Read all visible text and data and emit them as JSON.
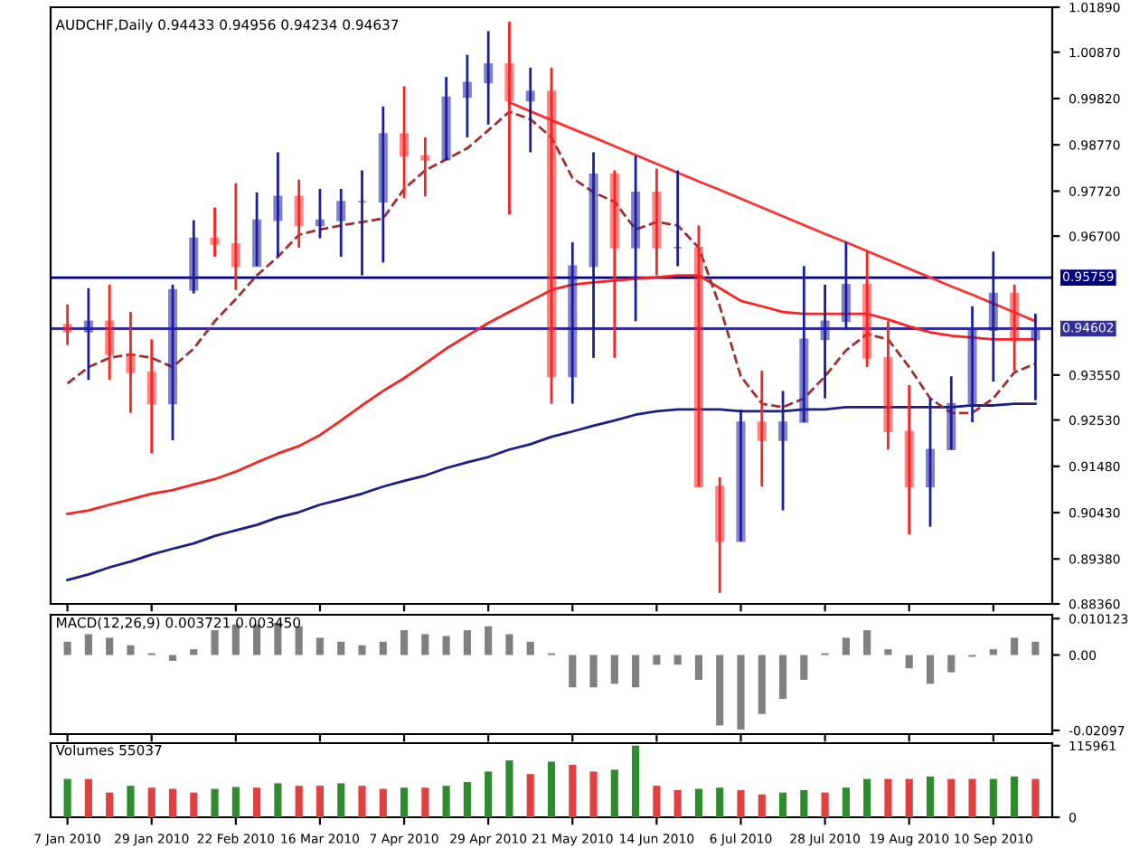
{
  "chart_data": [
    {
      "type": "candlestick",
      "title": "AUDCHF,Daily 0.94433 0.94956 0.94234 0.94637",
      "tick_labels": "y",
      "categories": [
        null,
        null,
        null,
        null,
        null,
        null,
        null,
        null,
        null,
        null,
        null,
        null,
        null,
        null,
        null,
        null,
        null,
        null,
        null,
        null,
        null,
        null,
        null,
        null,
        null,
        null,
        null,
        null,
        null,
        null,
        null,
        null,
        null,
        null,
        null,
        null,
        null,
        null,
        null,
        null,
        null,
        null,
        null,
        null,
        null,
        null,
        null
      ],
      "ohlc": [
        [
          0.9469,
          0.9515,
          0.9423,
          0.9453
        ],
        [
          0.9453,
          0.9552,
          0.9344,
          0.9477
        ],
        [
          0.9477,
          0.956,
          0.9344,
          0.9402
        ],
        [
          0.9402,
          0.9498,
          0.9269,
          0.9361
        ],
        [
          0.9361,
          0.9436,
          0.9177,
          0.929
        ],
        [
          0.929,
          0.956,
          0.9207,
          0.9548
        ],
        [
          0.9548,
          0.9706,
          0.954,
          0.9665
        ],
        [
          0.9665,
          0.9735,
          0.9623,
          0.9652
        ],
        [
          0.9652,
          0.979,
          0.9548,
          0.9602
        ],
        [
          0.9602,
          0.9769,
          0.9602,
          0.9706
        ],
        [
          0.9706,
          0.986,
          0.9623,
          0.976
        ],
        [
          0.976,
          0.9798,
          0.9644,
          0.9694
        ],
        [
          0.9694,
          0.9777,
          0.9665,
          0.9706
        ],
        [
          0.9706,
          0.9777,
          0.9623,
          0.9748
        ],
        [
          0.9748,
          0.9819,
          0.9581,
          0.9748
        ],
        [
          0.9748,
          0.9964,
          0.961,
          0.9902
        ],
        [
          0.9902,
          1.001,
          0.9756,
          0.9852
        ],
        [
          0.9852,
          0.9894,
          0.976,
          0.9843
        ],
        [
          0.9843,
          1.0031,
          0.9843,
          0.9985
        ],
        [
          0.9985,
          1.0081,
          0.9894,
          1.0018
        ],
        [
          1.0018,
          1.0135,
          0.9923,
          1.006
        ],
        [
          1.006,
          1.0156,
          0.9719,
          0.9977
        ],
        [
          0.9977,
          1.0052,
          0.986,
          0.9998
        ],
        [
          0.9998,
          1.0052,
          0.929,
          0.9352
        ],
        [
          0.9352,
          0.9656,
          0.929,
          0.9602
        ],
        [
          0.9602,
          0.986,
          0.9394,
          0.981
        ],
        [
          0.981,
          0.9819,
          0.9394,
          0.9644
        ],
        [
          0.9644,
          0.9852,
          0.9477,
          0.9769
        ],
        [
          0.9769,
          0.9823,
          0.9581,
          0.9644
        ],
        [
          0.9644,
          0.9819,
          0.9602,
          0.9644
        ],
        [
          0.9644,
          0.9694,
          0.9102,
          0.9102
        ],
        [
          0.9102,
          0.9123,
          0.8861,
          0.8978
        ],
        [
          0.8978,
          0.9277,
          0.8978,
          0.9248
        ],
        [
          0.9248,
          0.9365,
          0.9102,
          0.9207
        ],
        [
          0.9207,
          0.9319,
          0.9048,
          0.9248
        ],
        [
          0.9248,
          0.9602,
          0.9248,
          0.9436
        ],
        [
          0.9436,
          0.956,
          0.9302,
          0.9477
        ],
        [
          0.9477,
          0.9656,
          0.9457,
          0.956
        ],
        [
          0.956,
          0.9635,
          0.9373,
          0.9394
        ],
        [
          0.9394,
          0.9477,
          0.9186,
          0.9227
        ],
        [
          0.9227,
          0.9332,
          0.8994,
          0.9102
        ],
        [
          0.9102,
          0.9302,
          0.9011,
          0.9186
        ],
        [
          0.9186,
          0.9352,
          0.9186,
          0.929
        ],
        [
          0.929,
          0.9511,
          0.9248,
          0.9457
        ],
        [
          0.9457,
          0.9635,
          0.934,
          0.954
        ],
        [
          0.954,
          0.956,
          0.9365,
          0.9436
        ],
        [
          0.9436,
          0.9494,
          0.9298,
          0.9457
        ]
      ],
      "series": [
        {
          "type": "line",
          "color": "#1c1c8c",
          "values": [
            0.889,
            0.8903,
            0.8919,
            0.8932,
            0.8948,
            0.8961,
            0.8973,
            0.899,
            0.9003,
            0.9015,
            0.9032,
            0.9044,
            0.9061,
            0.9073,
            0.9086,
            0.9102,
            0.9115,
            0.9127,
            0.9144,
            0.9157,
            0.9169,
            0.9186,
            0.9198,
            0.9215,
            0.9227,
            0.924,
            0.9252,
            0.9265,
            0.9273,
            0.9277,
            0.9277,
            0.9277,
            0.9273,
            0.9273,
            0.9273,
            0.9277,
            0.9277,
            0.9282,
            0.9282,
            0.9282,
            0.9282,
            0.9282,
            0.9282,
            0.9286,
            0.9286,
            0.929,
            0.929
          ]
        },
        {
          "type": "line",
          "color": "#ff2020",
          "values": [
            0.904,
            0.9048,
            0.9061,
            0.9073,
            0.9086,
            0.9094,
            0.9107,
            0.9119,
            0.9136,
            0.9157,
            0.9177,
            0.9194,
            0.9219,
            0.9252,
            0.9286,
            0.9319,
            0.9348,
            0.9381,
            0.9415,
            0.9444,
            0.9473,
            0.9498,
            0.9523,
            0.9548,
            0.956,
            0.9565,
            0.9569,
            0.9573,
            0.9577,
            0.9581,
            0.9581,
            0.9552,
            0.9523,
            0.9511,
            0.9498,
            0.9494,
            0.9494,
            0.9494,
            0.9494,
            0.9481,
            0.9465,
            0.9452,
            0.9444,
            0.944,
            0.9436,
            0.9436,
            0.9436
          ]
        },
        {
          "type": "line",
          "color": "#a03030",
          "line_style": "dashed",
          "values": [
            0.9336,
            0.9373,
            0.9394,
            0.9402,
            0.9394,
            0.9373,
            0.9415,
            0.9477,
            0.9527,
            0.9581,
            0.9623,
            0.9673,
            0.9685,
            0.9694,
            0.9702,
            0.971,
            0.9777,
            0.9819,
            0.9844,
            0.9869,
            0.991,
            0.9952,
            0.9935,
            0.9894,
            0.9802,
            0.9769,
            0.9748,
            0.9685,
            0.9702,
            0.9694,
            0.9644,
            0.9511,
            0.9352,
            0.929,
            0.9282,
            0.9302,
            0.9352,
            0.9411,
            0.9448,
            0.9436,
            0.9373,
            0.9302,
            0.9269,
            0.9269,
            0.9302,
            0.9361,
            0.9381
          ]
        },
        {
          "type": "line",
          "color": "#ff3030",
          "values": [
            null,
            null,
            null,
            null,
            null,
            null,
            null,
            null,
            null,
            null,
            null,
            null,
            null,
            null,
            null,
            null,
            null,
            null,
            null,
            null,
            null,
            0.9973,
            0.9953,
            0.9933,
            0.9913,
            0.9894,
            0.9874,
            0.9854,
            0.9834,
            0.9814,
            0.9794,
            0.9775,
            0.9755,
            0.9735,
            0.9715,
            0.9695,
            0.9675,
            0.9656,
            0.9636,
            0.9616,
            0.9596,
            0.9576,
            0.9556,
            0.9537,
            0.9517,
            0.9497,
            0.9477
          ]
        }
      ],
      "ylim": [
        0.8836,
        1.0189
      ],
      "yticks": [
        {
          "value": 1.0189,
          "label": "1.01890"
        },
        {
          "value": 1.0087,
          "label": "1.00870"
        },
        {
          "value": 0.9982,
          "label": "0.99820"
        },
        {
          "value": 0.9877,
          "label": "0.98770"
        },
        {
          "value": 0.9772,
          "label": "0.97720"
        },
        {
          "value": 0.967,
          "label": "0.96700"
        },
        {
          "value": 0.9355,
          "label": "0.93550"
        },
        {
          "value": 0.9253,
          "label": "0.92530"
        },
        {
          "value": 0.9148,
          "label": "0.91480"
        },
        {
          "value": 0.9043,
          "label": "0.90430"
        },
        {
          "value": 0.8938,
          "label": "0.89380"
        },
        {
          "value": 0.8836,
          "label": "0.88360"
        }
      ],
      "ref_lines": [
        {
          "axis": "y",
          "value": 0.95759,
          "label": "0.95759",
          "color": "#000080"
        },
        {
          "axis": "y",
          "value": 0.94602,
          "label": "0.94602",
          "color": "#3030a0"
        }
      ]
    },
    {
      "type": "bar",
      "title": "MACD(12,26,9) 0.003721 0.003450",
      "tick_labels": "y",
      "categories": [
        null,
        null,
        null,
        null,
        null,
        null,
        null,
        null,
        null,
        null,
        null,
        null,
        null,
        null,
        null,
        null,
        null,
        null,
        null,
        null,
        null,
        null,
        null,
        null,
        null,
        null,
        null,
        null,
        null,
        null,
        null,
        null,
        null,
        null,
        null,
        null,
        null,
        null,
        null,
        null,
        null,
        null,
        null,
        null,
        null,
        null,
        null
      ],
      "color": "#808080",
      "values": [
        0.0037,
        0.0058,
        0.0048,
        0.0027,
        0.0005,
        -0.0016,
        0.0016,
        0.0069,
        0.0085,
        0.0085,
        0.009,
        0.008,
        0.0048,
        0.0037,
        0.0027,
        0.0037,
        0.0069,
        0.0058,
        0.0053,
        0.0069,
        0.008,
        0.0058,
        0.0037,
        0.0005,
        -0.009,
        -0.009,
        -0.008,
        -0.009,
        -0.0027,
        -0.0027,
        -0.0069,
        -0.0196,
        -0.0207,
        -0.0164,
        -0.0122,
        -0.0069,
        0.0005,
        0.0048,
        0.0069,
        0.0016,
        -0.0037,
        -0.008,
        -0.0048,
        -0.0005,
        0.0016,
        0.0048,
        0.0037
      ],
      "ylim": [
        -0.022,
        0.0112
      ],
      "yticks": [
        {
          "value": 0.010123,
          "label": "0.010123"
        },
        {
          "value": 0,
          "label": "0.00"
        },
        {
          "value": -0.02097,
          "label": "-0.02097"
        }
      ]
    },
    {
      "type": "bar",
      "title": "Volumes 55037",
      "categories": [
        "7 Jan 2010",
        null,
        null,
        null,
        "29 Jan 2010",
        null,
        null,
        null,
        "22 Feb 2010",
        null,
        null,
        null,
        "16 Mar 2010",
        null,
        null,
        null,
        "7 Apr 2010",
        null,
        null,
        null,
        "29 Apr 2010",
        null,
        null,
        null,
        "21 May 2010",
        null,
        null,
        null,
        "14 Jun 2010",
        null,
        null,
        null,
        "6 Jul 2010",
        null,
        null,
        null,
        "28 Jul 2010",
        null,
        null,
        null,
        "19 Aug 2010",
        null,
        null,
        null,
        "10 Sep 2010",
        null,
        null
      ],
      "values": [
        62000,
        62000,
        40000,
        51000,
        48000,
        46000,
        40000,
        46000,
        49000,
        48000,
        55000,
        51000,
        51000,
        55000,
        51000,
        46000,
        48000,
        48000,
        51000,
        57000,
        74000,
        92000,
        70000,
        90000,
        85000,
        74000,
        77000,
        116000,
        51000,
        44000,
        46000,
        48000,
        44000,
        37000,
        40000,
        44000,
        40000,
        48000,
        62000,
        62000,
        62000,
        66000,
        62000,
        62000,
        62000,
        66000,
        62000
      ],
      "colors": [
        "#2e8b2e",
        "#e04040",
        "#e04040",
        "#2e8b2e",
        "#e04040",
        "#e04040",
        "#e04040",
        "#2e8b2e",
        "#2e8b2e",
        "#e04040",
        "#2e8b2e",
        "#e04040",
        "#e04040",
        "#2e8b2e",
        "#e04040",
        "#e04040",
        "#2e8b2e",
        "#e04040",
        "#2e8b2e",
        "#2e8b2e",
        "#2e8b2e",
        "#2e8b2e",
        "#e04040",
        "#2e8b2e",
        "#e04040",
        "#e04040",
        "#2e8b2e",
        "#2e8b2e",
        "#e04040",
        "#e04040",
        "#2e8b2e",
        "#2e8b2e",
        "#e04040",
        "#e04040",
        "#2e8b2e",
        "#2e8b2e",
        "#e04040",
        "#2e8b2e",
        "#2e8b2e",
        "#e04040",
        "#e04040",
        "#2e8b2e",
        "#e04040",
        "#e04040",
        "#2e8b2e",
        "#2e8b2e",
        "#e04040"
      ],
      "ylim": [
        0,
        120000
      ],
      "yticks": [
        0,
        115961
      ]
    }
  ]
}
